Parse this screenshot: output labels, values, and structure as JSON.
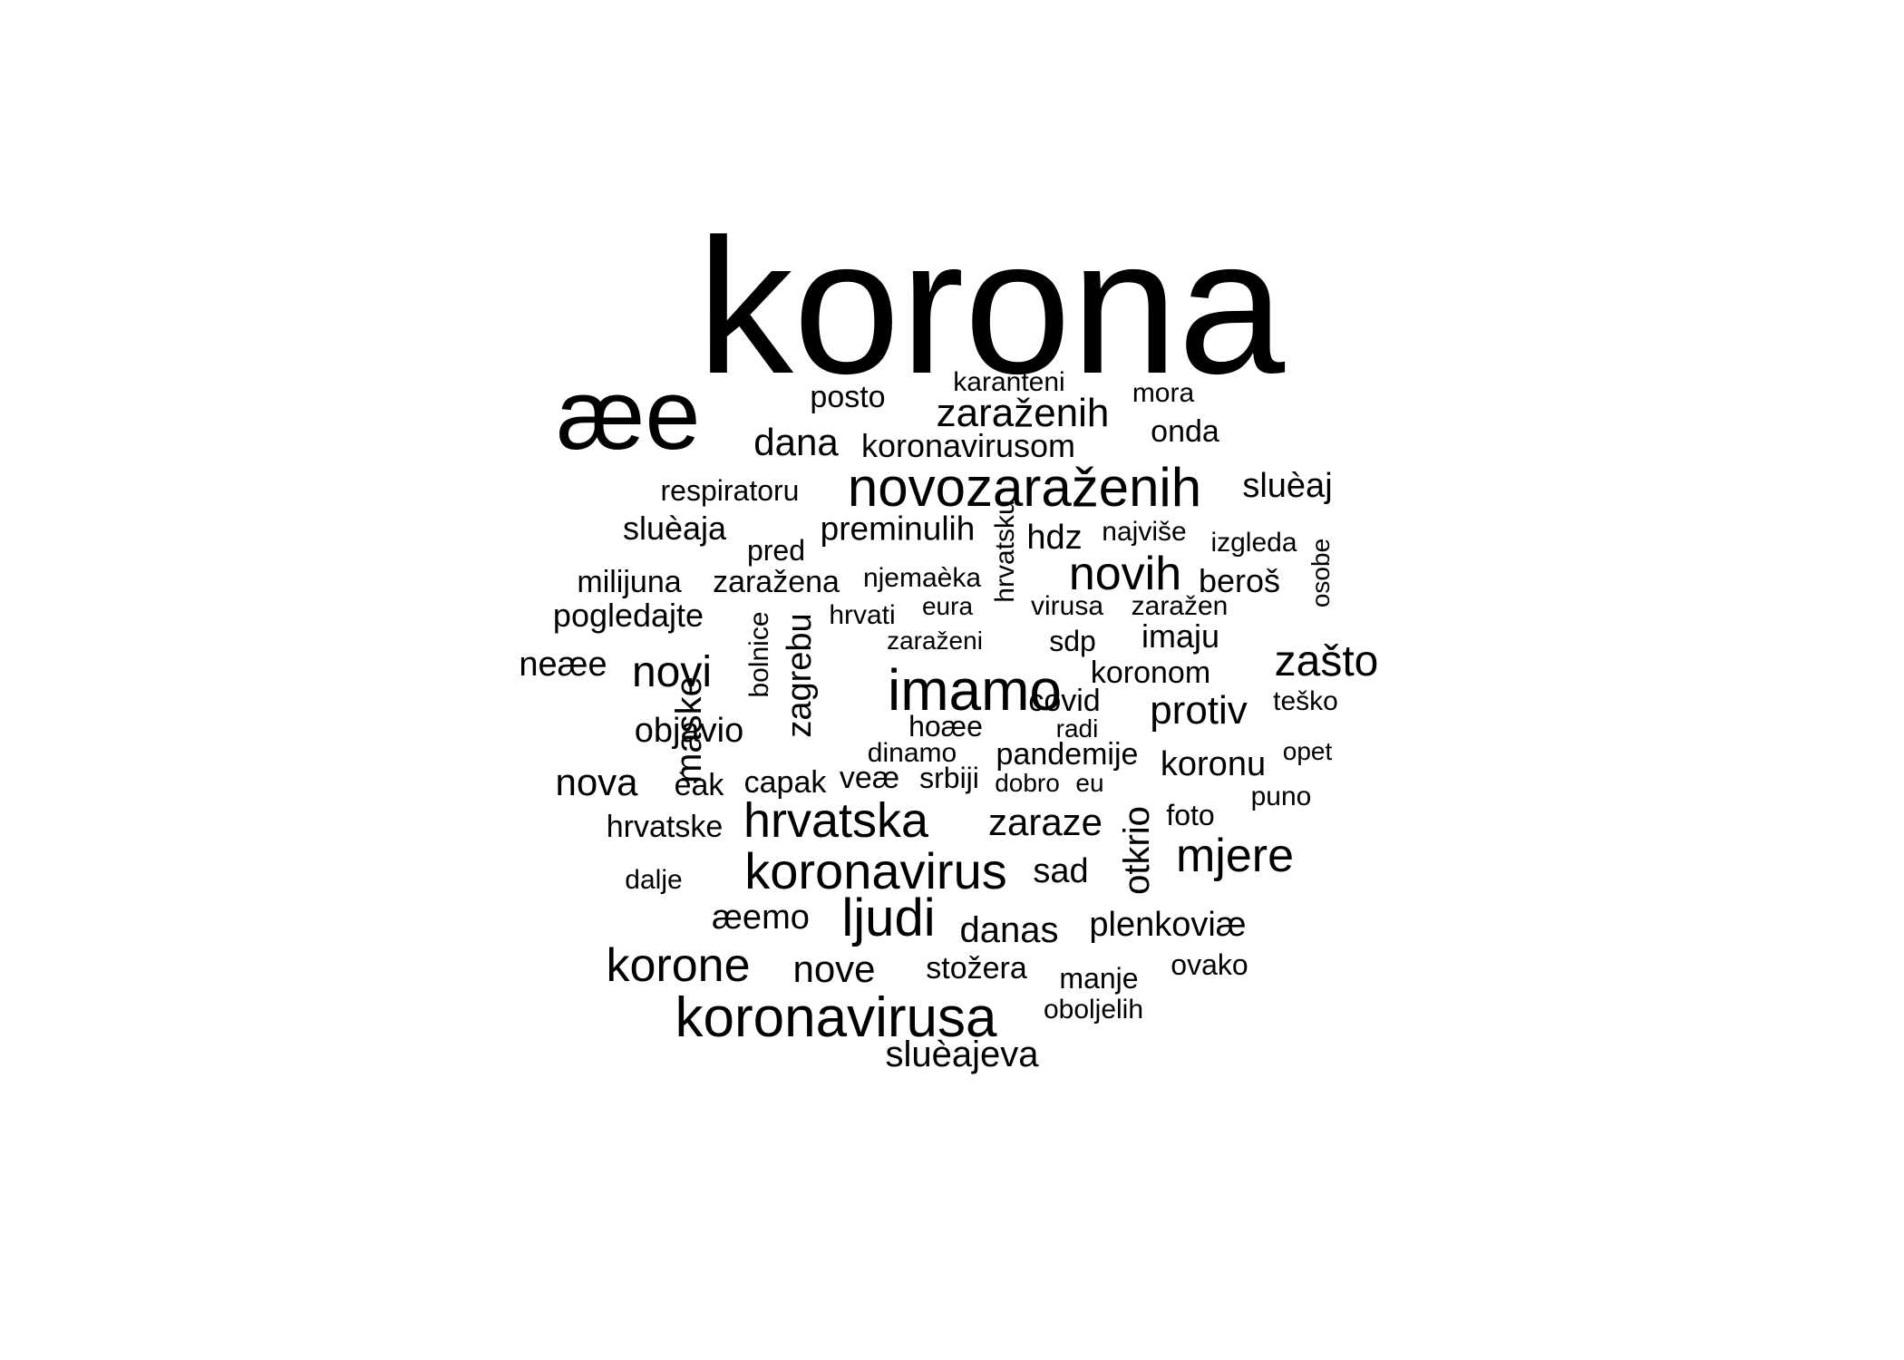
{
  "word_cloud": {
    "color": "#000000",
    "words": [
      {
        "text": "korona"
      },
      {
        "text": "æe"
      },
      {
        "text": "posto"
      },
      {
        "text": "karanteni"
      },
      {
        "text": "zaraženih"
      },
      {
        "text": "mora"
      },
      {
        "text": "dana"
      },
      {
        "text": "koronavirusom"
      },
      {
        "text": "onda"
      },
      {
        "text": "respiratoru"
      },
      {
        "text": "novozaraženih"
      },
      {
        "text": "sluèaj"
      },
      {
        "text": "sluèaja"
      },
      {
        "text": "preminulih"
      },
      {
        "text": "hdz"
      },
      {
        "text": "najviše"
      },
      {
        "text": "izgleda"
      },
      {
        "text": "pred"
      },
      {
        "text": "hrvatsku"
      },
      {
        "text": "osobe"
      },
      {
        "text": "milijuna"
      },
      {
        "text": "zaražena"
      },
      {
        "text": "njemaèka"
      },
      {
        "text": "novih"
      },
      {
        "text": "beroš"
      },
      {
        "text": "pogledajte"
      },
      {
        "text": "hrvati"
      },
      {
        "text": "eura"
      },
      {
        "text": "virusa"
      },
      {
        "text": "zaražen"
      },
      {
        "text": "sdp"
      },
      {
        "text": "imaju"
      },
      {
        "text": "zaraženi"
      },
      {
        "text": "neæe"
      },
      {
        "text": "novi"
      },
      {
        "text": "zašto"
      },
      {
        "text": "koronom"
      },
      {
        "text": "imamo"
      },
      {
        "text": "covid"
      },
      {
        "text": "teško"
      },
      {
        "text": "maske"
      },
      {
        "text": "bolnice"
      },
      {
        "text": "zagrebu"
      },
      {
        "text": "hoæe"
      },
      {
        "text": "radi"
      },
      {
        "text": "protiv"
      },
      {
        "text": "objavio"
      },
      {
        "text": "dinamo"
      },
      {
        "text": "pandemije"
      },
      {
        "text": "opet"
      },
      {
        "text": "nova"
      },
      {
        "text": "èak"
      },
      {
        "text": "capak"
      },
      {
        "text": "veæ"
      },
      {
        "text": "srbiji"
      },
      {
        "text": "dobro"
      },
      {
        "text": "eu"
      },
      {
        "text": "koronu"
      },
      {
        "text": "puno"
      },
      {
        "text": "hrvatske"
      },
      {
        "text": "hrvatska"
      },
      {
        "text": "zaraze"
      },
      {
        "text": "foto"
      },
      {
        "text": "otkrio"
      },
      {
        "text": "mjere"
      },
      {
        "text": "koronavirus"
      },
      {
        "text": "sad"
      },
      {
        "text": "dalje"
      },
      {
        "text": "æemo"
      },
      {
        "text": "ljudi"
      },
      {
        "text": "danas"
      },
      {
        "text": "plenkoviæ"
      },
      {
        "text": "korone"
      },
      {
        "text": "nove"
      },
      {
        "text": "stožera"
      },
      {
        "text": "manje"
      },
      {
        "text": "ovako"
      },
      {
        "text": "koronavirusa"
      },
      {
        "text": "oboljelih"
      },
      {
        "text": "sluèajeva"
      }
    ]
  }
}
